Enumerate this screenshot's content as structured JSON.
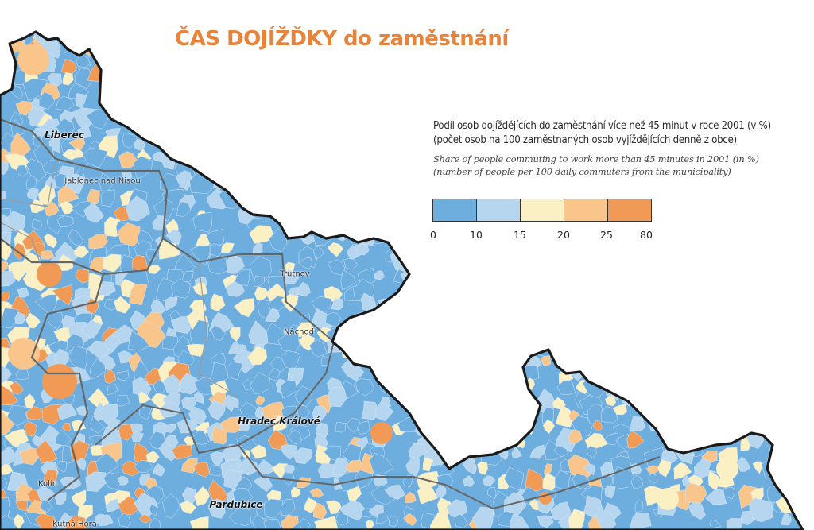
{
  "title": "ČAS DOJÍŽĎKY do zaměstnání",
  "colors": {
    "title": "#e8843a",
    "border": "#1a1a1a",
    "region_border": "#666666",
    "district_border": "#9a9a9a",
    "classes": [
      "#6eaede",
      "#b6d6f0",
      "#fbf0c4",
      "#f9c58b",
      "#f09a55"
    ]
  },
  "legend": {
    "line1_cs": "Podíl osob dojíždějících do zaměstnání více než 45 minut v roce 2001 (v %)",
    "line2_cs": "(počet osob na 100 zaměstnaných osob vyjíždějících denně z obce)",
    "line1_en": "Share of people commuting to work more than 45 minutes in 2001 (in %)",
    "line2_en": "(number of people per 100 daily commuters from the municipality)",
    "breaks": [
      "0",
      "10",
      "15",
      "20",
      "25",
      "80"
    ]
  },
  "cities": {
    "liberec": "Liberec",
    "jablonec": "Jablonec nad Nisou",
    "trutnov": "Trutnov",
    "nachod": "Náchod",
    "hradec": "Hradec Králové",
    "kolin": "Kolín",
    "pardubice": "Pardubice",
    "kutna": "Kutná Hora"
  }
}
